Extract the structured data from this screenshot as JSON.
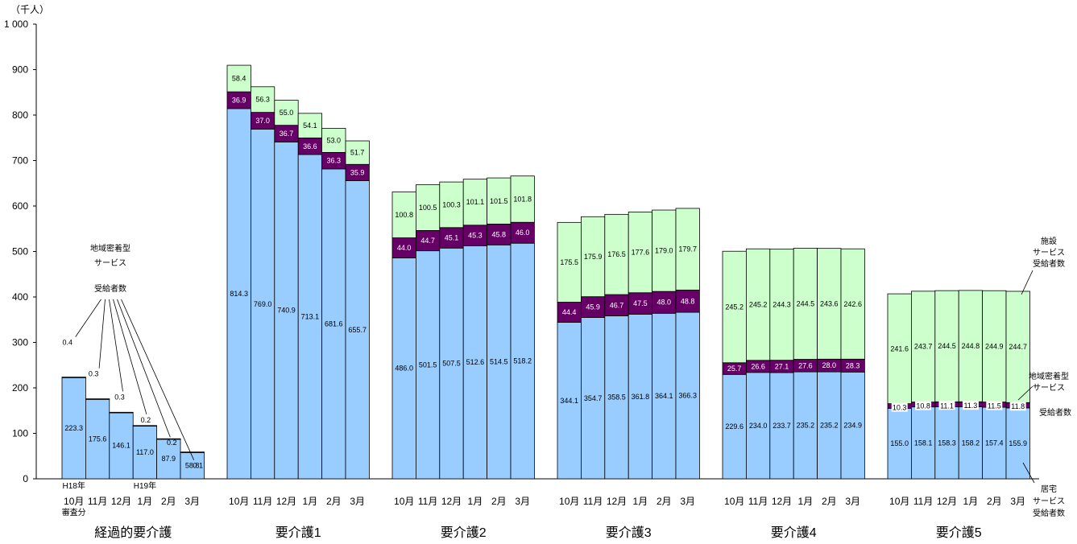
{
  "chart_data": {
    "type": "bar",
    "stacked": true,
    "unit_label": "（千人）",
    "ylim": [
      0,
      1000
    ],
    "yticks": [
      "0",
      "100",
      "200",
      "300",
      "400",
      "500",
      "600",
      "700",
      "800",
      "900",
      "1 000"
    ],
    "grid": false,
    "colors": {
      "home": "#99ccff",
      "community": "#660066",
      "facility": "#ccffcc"
    },
    "groups": [
      {
        "name": "経過的要介護",
        "months": [
          "10月",
          "11月",
          "12月",
          "1月",
          "2月",
          "3月"
        ],
        "month_notes": [
          "H18年",
          "",
          "",
          "H19年",
          "",
          ""
        ],
        "bottom_notes": [
          "審査分",
          "",
          "",
          "",
          "",
          ""
        ],
        "home": [
          223.3,
          175.6,
          146.1,
          117.0,
          87.9,
          58.8
        ],
        "home_labels": [
          "223.3",
          "175.6",
          "146.1",
          "117.0",
          "87.9",
          "58.8"
        ],
        "community": [
          0.4,
          0.3,
          0.3,
          0.2,
          0.2,
          0.1
        ],
        "community_labels": [
          "0.4",
          "0.3",
          "0.3",
          "0.2",
          "0.2",
          "0.1"
        ],
        "facility": [
          0,
          0,
          0,
          0,
          0,
          0
        ],
        "facility_labels": [
          "",
          "",
          "",
          "",
          "",
          ""
        ]
      },
      {
        "name": "要介護1",
        "months": [
          "10月",
          "11月",
          "12月",
          "1月",
          "2月",
          "3月"
        ],
        "home": [
          814.3,
          769.0,
          740.9,
          713.1,
          681.6,
          655.7
        ],
        "home_labels": [
          "814.3",
          "769.0",
          "740.9",
          "713.1",
          "681.6",
          "655.7"
        ],
        "community": [
          36.9,
          37.0,
          36.7,
          36.6,
          36.3,
          35.9
        ],
        "community_labels": [
          "36.9",
          "37.0",
          "36.7",
          "36.6",
          "36.3",
          "35.9"
        ],
        "facility": [
          58.4,
          56.3,
          55.0,
          54.1,
          53.0,
          51.7
        ],
        "facility_labels": [
          "58.4",
          "56.3",
          "55.0",
          "54.1",
          "53.0",
          "51.7"
        ]
      },
      {
        "name": "要介護2",
        "months": [
          "10月",
          "11月",
          "12月",
          "1月",
          "2月",
          "3月"
        ],
        "home": [
          486.0,
          501.5,
          507.5,
          512.6,
          514.5,
          518.2
        ],
        "home_labels": [
          "486.0",
          "501.5",
          "507.5",
          "512.6",
          "514.5",
          "518.2"
        ],
        "community": [
          44.0,
          44.7,
          45.1,
          45.3,
          45.8,
          46.0
        ],
        "community_labels": [
          "44.0",
          "44.7",
          "45.1",
          "45.3",
          "45.8",
          "46.0"
        ],
        "facility": [
          100.8,
          100.5,
          100.3,
          101.1,
          101.5,
          101.8
        ],
        "facility_labels": [
          "100.8",
          "100.5",
          "100.3",
          "101.1",
          "101.5",
          "101.8"
        ]
      },
      {
        "name": "要介護3",
        "months": [
          "10月",
          "11月",
          "12月",
          "1月",
          "2月",
          "3月"
        ],
        "home": [
          344.1,
          354.7,
          358.5,
          361.8,
          364.1,
          366.3
        ],
        "home_labels": [
          "344.1",
          "354.7",
          "358.5",
          "361.8",
          "364.1",
          "366.3"
        ],
        "community": [
          44.4,
          45.9,
          46.7,
          47.5,
          48.0,
          48.8
        ],
        "community_labels": [
          "44.4",
          "45.9",
          "46.7",
          "47.5",
          "48.0",
          "48.8"
        ],
        "facility": [
          175.5,
          175.9,
          176.5,
          177.6,
          179.0,
          179.7
        ],
        "facility_labels": [
          "175.5",
          "175.9",
          "176.5",
          "177.6",
          "179.0",
          "179.7"
        ]
      },
      {
        "name": "要介護4",
        "months": [
          "10月",
          "11月",
          "12月",
          "1月",
          "2月",
          "3月"
        ],
        "home": [
          229.6,
          234.0,
          233.7,
          235.2,
          235.2,
          234.9
        ],
        "home_labels": [
          "229.6",
          "234.0",
          "233.7",
          "235.2",
          "235.2",
          "234.9"
        ],
        "community": [
          25.7,
          26.6,
          27.1,
          27.6,
          28.0,
          28.3
        ],
        "community_labels": [
          "25.7",
          "26.6",
          "27.1",
          "27.6",
          "28.0",
          "28.3"
        ],
        "facility": [
          245.2,
          245.2,
          244.3,
          244.5,
          243.6,
          242.6
        ],
        "facility_labels": [
          "245.2",
          "245.2",
          "244.3",
          "244.5",
          "243.6",
          "242.6"
        ]
      },
      {
        "name": "要介護5",
        "months": [
          "10月",
          "11月",
          "12月",
          "1月",
          "2月",
          "3月"
        ],
        "home": [
          155.0,
          158.1,
          158.3,
          158.2,
          157.4,
          155.9
        ],
        "home_labels": [
          "155.0",
          "158.1",
          "158.3",
          "158.2",
          "157.4",
          "155.9"
        ],
        "community": [
          10.3,
          10.8,
          11.1,
          11.3,
          11.5,
          11.8
        ],
        "community_labels": [
          "10.3",
          "10.8",
          "11.1",
          "11.3",
          "11.5",
          "11.8"
        ],
        "facility": [
          241.6,
          243.7,
          244.5,
          244.8,
          244.9,
          244.7
        ],
        "facility_labels": [
          "241.6",
          "243.7",
          "244.5",
          "244.8",
          "244.9",
          "244.7"
        ]
      }
    ],
    "annotations": {
      "community_group0": [
        "地域密着型",
        "サービス",
        "受給者数"
      ],
      "facility_right": [
        "施設",
        "サービス",
        "受給者数"
      ],
      "community_right": [
        "地域密着型",
        "サービス",
        "受給者数"
      ],
      "home_right": [
        "居宅",
        "サービス",
        "受給者数"
      ]
    }
  }
}
